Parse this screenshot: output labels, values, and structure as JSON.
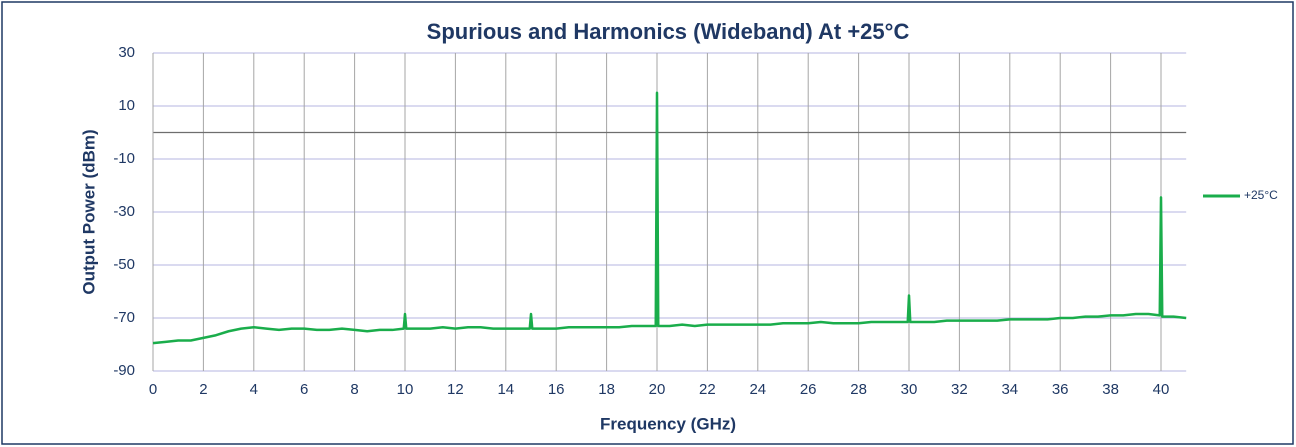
{
  "chart_data": {
    "type": "line",
    "title": "Spurious and Harmonics (Wideband) At +25°C",
    "x_label": "Frequency (GHz)",
    "y_label": "Output Power (dBm)",
    "xlim": [
      0,
      41
    ],
    "ylim": [
      -90,
      30
    ],
    "xticks": [
      0,
      2,
      4,
      6,
      8,
      10,
      12,
      14,
      16,
      18,
      20,
      22,
      24,
      26,
      28,
      30,
      32,
      34,
      36,
      38,
      40
    ],
    "yticks": [
      -90,
      -70,
      -50,
      -30,
      -10,
      10,
      30
    ],
    "grid": true,
    "legend": "right",
    "x": [
      0,
      0.5,
      1,
      1.5,
      2,
      2.5,
      3,
      3.5,
      4,
      4.5,
      5,
      5.5,
      6,
      6.5,
      7,
      7.5,
      8,
      8.5,
      9,
      9.5,
      9.95,
      10,
      10.05,
      10.5,
      11,
      11.5,
      12,
      12.5,
      13,
      13.5,
      14,
      14.5,
      14.95,
      15,
      15.05,
      15.5,
      16,
      16.5,
      17,
      17.5,
      18,
      18.5,
      19,
      19.5,
      19.95,
      20,
      20.05,
      20.5,
      21,
      21.5,
      22,
      22.5,
      23,
      23.5,
      24,
      24.5,
      25,
      25.5,
      26,
      26.5,
      27,
      27.5,
      28,
      28.5,
      29,
      29.5,
      29.95,
      30,
      30.05,
      30.5,
      31,
      31.5,
      32,
      32.5,
      33,
      33.5,
      34,
      34.5,
      35,
      35.5,
      36,
      36.5,
      37,
      37.5,
      38,
      38.5,
      39,
      39.5,
      39.95,
      40,
      40.05,
      40.5,
      41
    ],
    "series": [
      {
        "name": "+25°C",
        "color": "#1aad4b",
        "values": [
          -79.5,
          -79,
          -78.5,
          -78.5,
          -77.5,
          -76.5,
          -75,
          -74,
          -73.5,
          -74,
          -74.5,
          -74,
          -74,
          -74.5,
          -74.5,
          -74,
          -74.5,
          -75,
          -74.5,
          -74.5,
          -74,
          -68.5,
          -74,
          -74,
          -74,
          -73.5,
          -74,
          -73.5,
          -73.5,
          -74,
          -74,
          -74,
          -74,
          -68.5,
          -74,
          -74,
          -74,
          -73.5,
          -73.5,
          -73.5,
          -73.5,
          -73.5,
          -73,
          -73,
          -73,
          15,
          -73,
          -73,
          -72.5,
          -73,
          -72.5,
          -72.5,
          -72.5,
          -72.5,
          -72.5,
          -72.5,
          -72,
          -72,
          -72,
          -71.5,
          -72,
          -72,
          -72,
          -71.5,
          -71.5,
          -71.5,
          -71.5,
          -61.5,
          -71.5,
          -71.5,
          -71.5,
          -71,
          -71,
          -71,
          -71,
          -71,
          -70.5,
          -70.5,
          -70.5,
          -70.5,
          -70,
          -70,
          -69.5,
          -69.5,
          -69,
          -69,
          -68.5,
          -68.5,
          -69,
          -24.5,
          -69.5,
          -69.5,
          -70
        ]
      }
    ]
  }
}
